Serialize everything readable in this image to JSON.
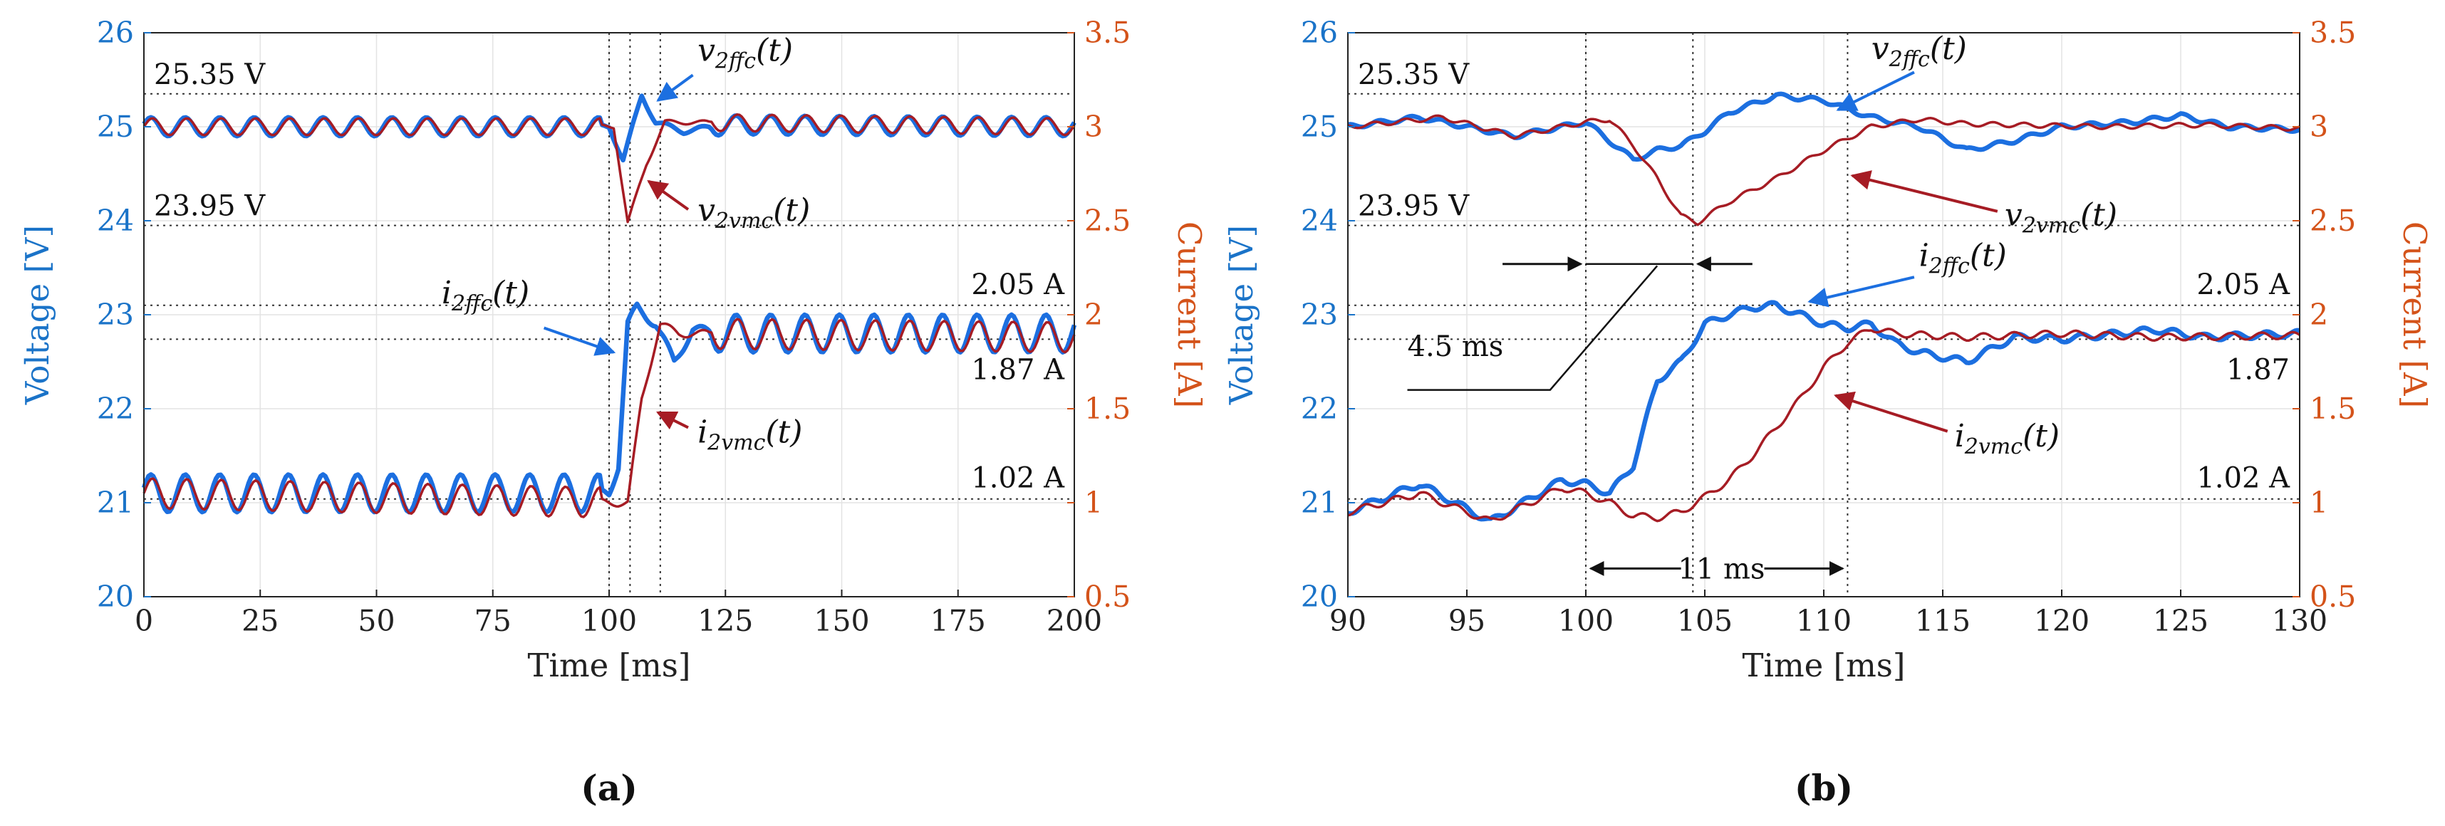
{
  "figure": {
    "colors": {
      "voltage_axis": "#1a73c8",
      "current_axis": "#d4531a",
      "ffc": "#1c6fe0",
      "vmc": "#a61c24"
    }
  },
  "chart_data": [
    {
      "panel": "a",
      "panel_label": "(a)",
      "type": "line",
      "xlabel": "Time [ms]",
      "ylabel": "Voltage [V]",
      "y2label": "Current [A]",
      "xlim": [
        0,
        200
      ],
      "ylim": [
        20,
        26
      ],
      "y2lim": [
        0.5,
        3.5
      ],
      "xticks": [
        "0",
        "25",
        "50",
        "75",
        "100",
        "125",
        "150",
        "175",
        "200"
      ],
      "yticks": [
        "20",
        "21",
        "22",
        "23",
        "24",
        "25",
        "26"
      ],
      "y2ticks": [
        "0.5",
        "1",
        "1.5",
        "2",
        "2.5",
        "3",
        "3.5"
      ],
      "series": [
        {
          "name": "v2ffc(t)",
          "axis": "left",
          "color": "#1c6fe0",
          "values": [
            [
              0,
              25.0
            ],
            [
              100,
              25.0
            ],
            [
              103,
              24.65
            ],
            [
              107,
              25.33
            ],
            [
              110,
              25.05
            ],
            [
              116,
              24.95
            ],
            [
              125,
              25.02
            ],
            [
              200,
              25.0
            ]
          ]
        },
        {
          "name": "v2vmc(t)",
          "axis": "left",
          "color": "#a61c24",
          "values": [
            [
              0,
              25.0
            ],
            [
              101,
              25.0
            ],
            [
              104,
              23.98
            ],
            [
              108,
              24.6
            ],
            [
              112,
              25.05
            ],
            [
              200,
              25.0
            ]
          ]
        },
        {
          "name": "i2ffc(t)",
          "axis": "right",
          "color": "#1c6fe0",
          "values": [
            [
              0,
              1.05
            ],
            [
              100,
              1.05
            ],
            [
              102,
              1.2
            ],
            [
              104,
              1.95
            ],
            [
              106,
              2.04
            ],
            [
              110,
              1.95
            ],
            [
              114,
              1.75
            ],
            [
              118,
              1.92
            ],
            [
              125,
              1.9
            ],
            [
              200,
              1.9
            ]
          ]
        },
        {
          "name": "i2vmc(t)",
          "axis": "right",
          "color": "#a61c24",
          "values": [
            [
              0,
              1.05
            ],
            [
              102,
              1.0
            ],
            [
              104,
              1.0
            ],
            [
              107,
              1.55
            ],
            [
              111,
              1.95
            ],
            [
              115,
              1.9
            ],
            [
              200,
              1.88
            ]
          ]
        }
      ],
      "reference_lines": {
        "voltage": [
          {
            "value": 25.35,
            "label": "25.35 V"
          },
          {
            "value": 23.95,
            "label": "23.95 V"
          }
        ],
        "current": [
          {
            "value": 2.05,
            "label": "2.05 A"
          },
          {
            "value": 1.87,
            "label": "1.87 A"
          },
          {
            "value": 1.02,
            "label": "1.02 A"
          }
        ],
        "time": [
          100,
          104.5,
          111
        ]
      },
      "signal_labels": [
        {
          "main": "v",
          "sub": "2ffc",
          "tail": "(t)"
        },
        {
          "main": "v",
          "sub": "2vmc",
          "tail": "(t)"
        },
        {
          "main": "i",
          "sub": "2ffc",
          "tail": "(t)"
        },
        {
          "main": "i",
          "sub": "2vmc",
          "tail": "(t)"
        }
      ]
    },
    {
      "panel": "b",
      "panel_label": "(b)",
      "type": "line",
      "xlabel": "Time [ms]",
      "ylabel": "Voltage [V]",
      "y2label": "Current [A]",
      "xlim": [
        90,
        130
      ],
      "ylim": [
        20,
        26
      ],
      "y2lim": [
        0.5,
        3.5
      ],
      "xticks": [
        "90",
        "95",
        "100",
        "105",
        "110",
        "115",
        "120",
        "125",
        "130"
      ],
      "yticks": [
        "20",
        "21",
        "22",
        "23",
        "24",
        "25",
        "26"
      ],
      "y2ticks": [
        "0.5",
        "1",
        "1.5",
        "2",
        "2.5",
        "3",
        "3.5"
      ],
      "series": [
        {
          "name": "v2ffc(t)",
          "axis": "left",
          "color": "#1c6fe0",
          "values": [
            [
              90,
              25.0
            ],
            [
              93,
              25.1
            ],
            [
              97,
              24.9
            ],
            [
              100,
              25.05
            ],
            [
              101,
              24.85
            ],
            [
              102,
              24.65
            ],
            [
              103,
              24.75
            ],
            [
              104,
              24.8
            ],
            [
              105,
              24.95
            ],
            [
              106,
              25.15
            ],
            [
              108,
              25.33
            ],
            [
              110,
              25.28
            ],
            [
              112,
              25.1
            ],
            [
              114,
              25.0
            ],
            [
              116,
              24.75
            ],
            [
              118,
              24.85
            ],
            [
              120,
              25.0
            ],
            [
              123,
              25.05
            ],
            [
              125,
              25.12
            ],
            [
              127,
              25.0
            ],
            [
              130,
              24.97
            ]
          ]
        },
        {
          "name": "v2vmc(t)",
          "axis": "left",
          "color": "#a61c24",
          "values": [
            [
              90,
              25.0
            ],
            [
              94,
              25.1
            ],
            [
              97,
              24.9
            ],
            [
              100,
              25.05
            ],
            [
              101,
              25.08
            ],
            [
              102,
              24.8
            ],
            [
              103,
              24.45
            ],
            [
              104,
              24.05
            ],
            [
              104.7,
              23.98
            ],
            [
              106,
              24.2
            ],
            [
              108,
              24.45
            ],
            [
              110,
              24.75
            ],
            [
              112,
              25.0
            ],
            [
              114,
              25.08
            ],
            [
              116,
              25.03
            ],
            [
              118,
              25.02
            ],
            [
              122,
              25.0
            ],
            [
              126,
              25.02
            ],
            [
              130,
              24.98
            ]
          ]
        },
        {
          "name": "i2ffc(t)",
          "axis": "right",
          "color": "#1c6fe0",
          "values": [
            [
              90,
              0.95
            ],
            [
              93,
              1.1
            ],
            [
              96,
              0.9
            ],
            [
              99,
              1.12
            ],
            [
              100,
              1.1
            ],
            [
              101,
              1.05
            ],
            [
              102,
              1.2
            ],
            [
              103,
              1.65
            ],
            [
              104,
              1.75
            ],
            [
              105,
              1.95
            ],
            [
              106,
              2.0
            ],
            [
              107,
              2.04
            ],
            [
              108,
              2.05
            ],
            [
              109,
              2.0
            ],
            [
              110,
              1.95
            ],
            [
              111,
              1.93
            ],
            [
              112,
              1.95
            ],
            [
              113,
              1.85
            ],
            [
              114,
              1.8
            ],
            [
              116,
              1.75
            ],
            [
              118,
              1.88
            ],
            [
              120,
              1.87
            ],
            [
              124,
              1.92
            ],
            [
              126,
              1.88
            ],
            [
              130,
              1.9
            ]
          ]
        },
        {
          "name": "i2vmc(t)",
          "axis": "right",
          "color": "#a61c24",
          "values": [
            [
              90,
              0.95
            ],
            [
              93,
              1.05
            ],
            [
              96,
              0.9
            ],
            [
              99,
              1.08
            ],
            [
              100,
              1.05
            ],
            [
              101,
              1.0
            ],
            [
              102,
              0.93
            ],
            [
              103,
              0.92
            ],
            [
              104,
              0.95
            ],
            [
              105,
              1.03
            ],
            [
              106,
              1.12
            ],
            [
              107,
              1.25
            ],
            [
              108,
              1.4
            ],
            [
              109,
              1.55
            ],
            [
              110,
              1.72
            ],
            [
              111,
              1.85
            ],
            [
              112,
              1.93
            ],
            [
              113,
              1.9
            ],
            [
              116,
              1.88
            ],
            [
              120,
              1.9
            ],
            [
              124,
              1.88
            ],
            [
              130,
              1.89
            ]
          ]
        }
      ],
      "reference_lines": {
        "voltage": [
          {
            "value": 25.35,
            "label": "25.35 V"
          },
          {
            "value": 23.95,
            "label": "23.95 V"
          }
        ],
        "current": [
          {
            "value": 2.05,
            "label": "2.05 A"
          },
          {
            "value": 1.87,
            "label": "1.87"
          },
          {
            "value": 1.02,
            "label": "1.02 A"
          }
        ],
        "time": [
          100,
          104.5,
          111
        ]
      },
      "signal_labels": [
        {
          "main": "v",
          "sub": "2ffc",
          "tail": "(t)"
        },
        {
          "main": "v",
          "sub": "2vmc",
          "tail": "(t)"
        },
        {
          "main": "i",
          "sub": "2ffc",
          "tail": "(t)"
        },
        {
          "main": "i",
          "sub": "2vmc",
          "tail": "(t)"
        }
      ],
      "intervals": [
        {
          "label": "4.5 ms",
          "from": 100,
          "to": 104.5
        },
        {
          "label": "11 ms",
          "from": 100,
          "to": 111
        }
      ]
    }
  ]
}
